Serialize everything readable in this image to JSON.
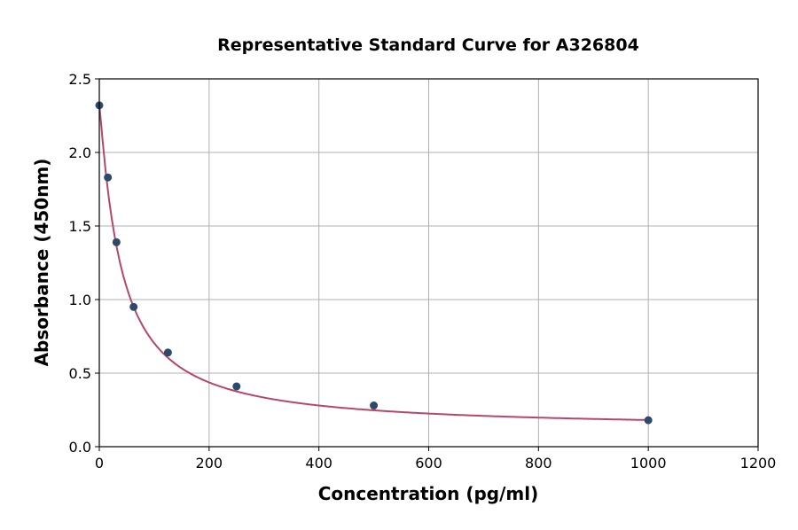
{
  "chart_data": {
    "type": "scatter",
    "title": "Representative Standard Curve for A326804",
    "xlabel": "Concentration (pg/ml)",
    "ylabel": "Absorbance (450nm)",
    "xlim": [
      0,
      1200
    ],
    "ylim": [
      0,
      2.5
    ],
    "xticks": [
      0,
      200,
      400,
      600,
      800,
      1000,
      1200
    ],
    "yticks": [
      "0.0",
      "0.5",
      "1.0",
      "1.5",
      "2.0",
      "2.5"
    ],
    "grid": true,
    "points": {
      "x": [
        0,
        15.6,
        31.25,
        62.5,
        125,
        250,
        500,
        1000
      ],
      "y": [
        2.32,
        1.83,
        1.39,
        0.95,
        0.64,
        0.41,
        0.28,
        0.18
      ]
    },
    "fit_curve": true,
    "colors": {
      "points": "#2e4a6b",
      "curve": "#b5476a",
      "grid": "#b0b0b0"
    }
  }
}
